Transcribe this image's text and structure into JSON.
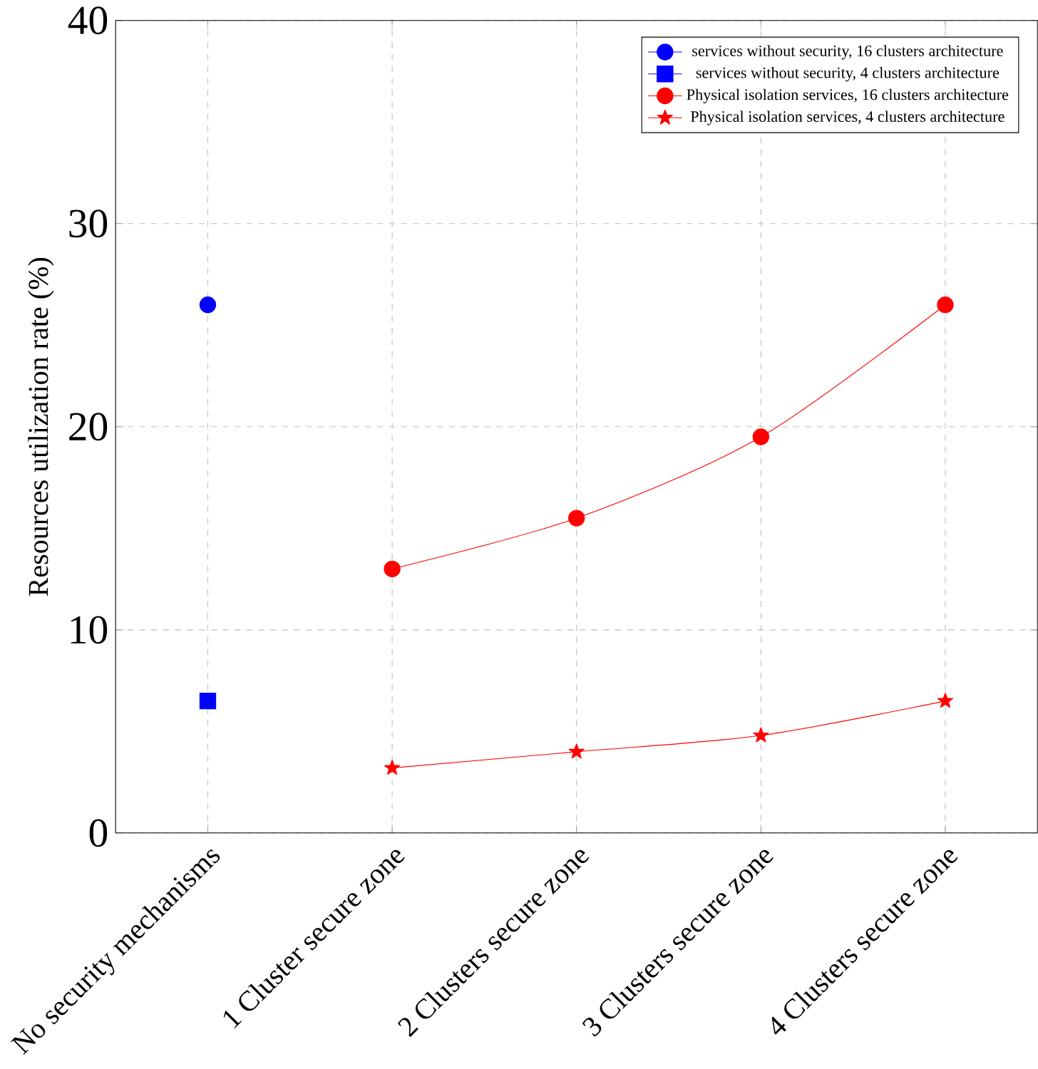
{
  "chart_data": {
    "type": "line",
    "ylabel": "Resources utilization rate (%)",
    "categories": [
      "No security mechanisms",
      "1 Cluster secure zone",
      "2 Clusters secure zone",
      "3 Clusters secure zone",
      "4 Clusters secure zone"
    ],
    "series": [
      {
        "name": "services without security, 16 clusters architecture",
        "color": "#0000ff",
        "marker": "circle",
        "values": [
          26,
          null,
          null,
          null,
          null
        ]
      },
      {
        "name": "services without security, 4 clusters architecture",
        "color": "#0000ff",
        "marker": "square",
        "values": [
          6.5,
          null,
          null,
          null,
          null
        ]
      },
      {
        "name": "Physical isolation services, 16 clusters architecture",
        "color": "#ff0000",
        "marker": "circle",
        "values": [
          null,
          13,
          15.5,
          19.5,
          26
        ]
      },
      {
        "name": "Physical isolation services, 4 clusters architecture",
        "color": "#ff0000",
        "marker": "star",
        "values": [
          null,
          3.2,
          4.0,
          4.8,
          6.5
        ]
      }
    ],
    "ylim": [
      0,
      40
    ],
    "yticks": [
      0,
      10,
      20,
      30,
      40
    ],
    "grid": true,
    "legend": "top right",
    "line_style": "solid"
  }
}
